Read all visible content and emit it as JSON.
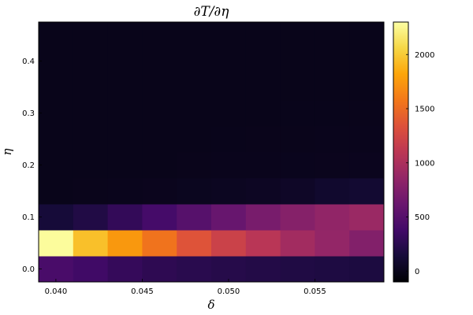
{
  "chart_data": {
    "type": "heatmap",
    "title": "∂T/∂η",
    "xlabel": "δ",
    "ylabel": "η",
    "xlim": [
      0.039,
      0.059
    ],
    "ylim": [
      -0.025,
      0.475
    ],
    "xticks": [
      0.04,
      0.045,
      0.05,
      0.055
    ],
    "xtick_labels": [
      "0.040",
      "0.045",
      "0.050",
      "0.055"
    ],
    "yticks": [
      0.0,
      0.1,
      0.2,
      0.3,
      0.4
    ],
    "ytick_labels": [
      "0.0",
      "0.1",
      "0.2",
      "0.3",
      "0.4"
    ],
    "x_centers": [
      0.04,
      0.042,
      0.044,
      0.046,
      0.048,
      0.05,
      0.052,
      0.054,
      0.056,
      0.058
    ],
    "y_centers": [
      0.0,
      0.05,
      0.1,
      0.15,
      0.2,
      0.25,
      0.3,
      0.35,
      0.4,
      0.45
    ],
    "z": [
      [
        420,
        370,
        310,
        270,
        245,
        225,
        210,
        195,
        185,
        175
      ],
      [
        2280,
        1950,
        1750,
        1550,
        1350,
        1200,
        1080,
        950,
        860,
        760
      ],
      [
        140,
        200,
        300,
        400,
        500,
        600,
        700,
        780,
        850,
        900
      ],
      [
        0,
        5,
        10,
        15,
        20,
        30,
        40,
        60,
        90,
        110
      ],
      [
        0,
        0,
        0,
        0,
        5,
        8,
        10,
        12,
        15,
        18
      ],
      [
        0,
        0,
        0,
        0,
        0,
        3,
        4,
        6,
        7,
        8
      ],
      [
        0,
        0,
        0,
        0,
        0,
        0,
        0,
        2,
        3,
        4
      ],
      [
        0,
        0,
        0,
        0,
        0,
        0,
        0,
        0,
        0,
        0
      ],
      [
        0,
        0,
        0,
        0,
        0,
        0,
        0,
        0,
        0,
        0
      ],
      [
        0,
        0,
        0,
        0,
        0,
        0,
        0,
        0,
        0,
        0
      ]
    ],
    "colorscale": "inferno",
    "clim": [
      -100,
      2300
    ],
    "colorbar_ticks": [
      0,
      500,
      1000,
      1500,
      2000
    ],
    "colorbar_tick_labels": [
      "0",
      "500",
      "1000",
      "1500",
      "2000"
    ],
    "grid": false,
    "legend": false
  }
}
